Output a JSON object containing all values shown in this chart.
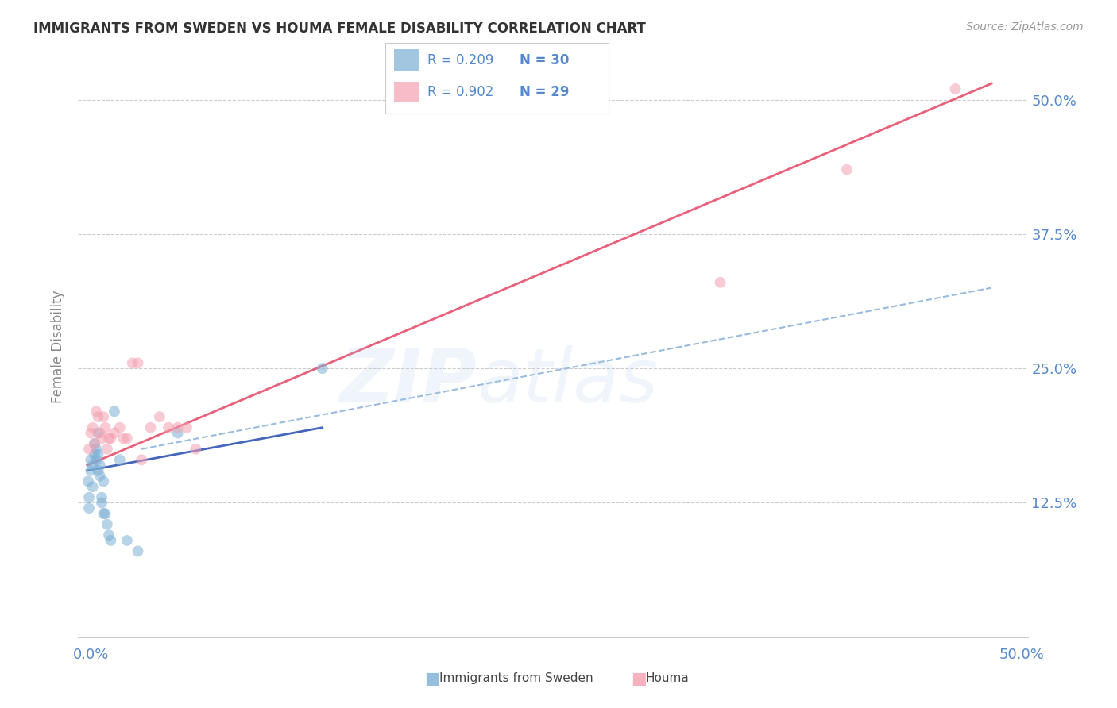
{
  "title": "IMMIGRANTS FROM SWEDEN VS HOUMA FEMALE DISABILITY CORRELATION CHART",
  "source": "Source: ZipAtlas.com",
  "ylabel": "Female Disability",
  "ytick_labels": [
    "12.5%",
    "25.0%",
    "37.5%",
    "50.0%"
  ],
  "ylim": [
    0.0,
    0.54
  ],
  "xlim": [
    -0.005,
    0.52
  ],
  "legend_r1": "R = 0.209",
  "legend_n1": "N = 30",
  "legend_r2": "R = 0.902",
  "legend_n2": "N = 29",
  "watermark_zip": "ZIP",
  "watermark_atlas": "atlas",
  "blue_scatter": "#7BAFD4",
  "pink_scatter": "#F4A0B0",
  "blue_line_color": "#4466BB",
  "pink_line_color": "#E8607A",
  "dashed_line_color": "#99BBDD",
  "scatter_alpha": 0.55,
  "marker_size": 100,
  "sweden_x": [
    0.0005,
    0.001,
    0.001,
    0.002,
    0.002,
    0.003,
    0.003,
    0.004,
    0.004,
    0.005,
    0.005,
    0.006,
    0.006,
    0.006,
    0.007,
    0.007,
    0.008,
    0.008,
    0.009,
    0.009,
    0.01,
    0.011,
    0.012,
    0.013,
    0.015,
    0.018,
    0.022,
    0.028,
    0.05,
    0.13
  ],
  "sweden_y": [
    0.145,
    0.13,
    0.12,
    0.165,
    0.155,
    0.14,
    0.16,
    0.17,
    0.18,
    0.175,
    0.165,
    0.155,
    0.17,
    0.19,
    0.16,
    0.15,
    0.13,
    0.125,
    0.145,
    0.115,
    0.115,
    0.105,
    0.095,
    0.09,
    0.21,
    0.165,
    0.09,
    0.08,
    0.19,
    0.25
  ],
  "houma_x": [
    0.001,
    0.002,
    0.003,
    0.004,
    0.005,
    0.006,
    0.007,
    0.008,
    0.009,
    0.01,
    0.011,
    0.012,
    0.013,
    0.015,
    0.018,
    0.02,
    0.022,
    0.025,
    0.028,
    0.03,
    0.035,
    0.04,
    0.045,
    0.05,
    0.055,
    0.06,
    0.35,
    0.42,
    0.48
  ],
  "houma_y": [
    0.175,
    0.19,
    0.195,
    0.18,
    0.21,
    0.205,
    0.19,
    0.185,
    0.205,
    0.195,
    0.175,
    0.185,
    0.185,
    0.19,
    0.195,
    0.185,
    0.185,
    0.255,
    0.255,
    0.165,
    0.195,
    0.205,
    0.195,
    0.195,
    0.195,
    0.175,
    0.33,
    0.435,
    0.51
  ],
  "pink_line_x0": 0.0,
  "pink_line_y0": 0.16,
  "pink_line_x1": 0.5,
  "pink_line_y1": 0.515,
  "blue_line_x0": 0.0,
  "blue_line_y0": 0.155,
  "blue_line_x1": 0.13,
  "blue_line_y1": 0.195,
  "dash_line_x0": 0.03,
  "dash_line_y0": 0.175,
  "dash_line_x1": 0.5,
  "dash_line_y1": 0.325
}
